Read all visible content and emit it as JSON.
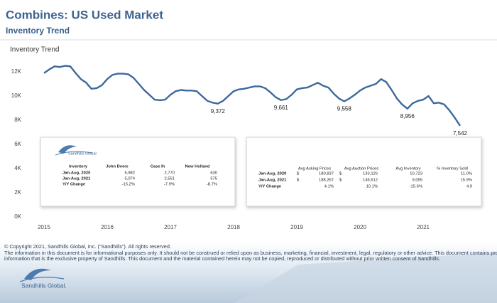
{
  "header": {
    "title": "Combines:  US Used Market",
    "subtitle": "Inventory Trend"
  },
  "chart_data": {
    "type": "line",
    "title": "Inventory Trend",
    "categories": [
      "2015",
      null,
      null,
      null,
      null,
      null,
      null,
      null,
      null,
      null,
      null,
      null,
      "2016",
      null,
      null,
      null,
      null,
      null,
      null,
      null,
      null,
      null,
      null,
      null,
      "2017",
      null,
      null,
      null,
      null,
      null,
      null,
      null,
      null,
      null,
      null,
      null,
      "2018",
      null,
      null,
      null,
      null,
      null,
      null,
      null,
      null,
      null,
      null,
      null,
      "2019",
      null,
      null,
      null,
      null,
      null,
      null,
      null,
      null,
      null,
      null,
      null,
      "2020",
      null,
      null,
      null,
      null,
      null,
      null,
      null,
      null,
      null,
      null,
      null,
      "2021",
      null,
      null,
      null,
      null,
      null,
      null,
      null
    ],
    "values": [
      11900,
      12200,
      12450,
      12400,
      12500,
      12450,
      11900,
      11400,
      11100,
      10600,
      10650,
      10900,
      11400,
      11750,
      11850,
      11850,
      11800,
      11500,
      11000,
      10500,
      10100,
      9700,
      9650,
      9700,
      10100,
      10400,
      10500,
      10450,
      10450,
      10400,
      10000,
      9600,
      9450,
      9372,
      9600,
      10000,
      10400,
      10550,
      10600,
      10700,
      10800,
      10800,
      10650,
      10300,
      9900,
      9661,
      9750,
      10100,
      10550,
      10650,
      10700,
      10900,
      11100,
      10850,
      10700,
      10200,
      9800,
      9558,
      9800,
      10100,
      10450,
      10700,
      10850,
      11000,
      11400,
      11150,
      10500,
      9800,
      9300,
      8956,
      9400,
      9600,
      9700,
      10000,
      9400,
      9450,
      9300,
      8800,
      8200,
      7542
    ],
    "value_labels": [
      null,
      null,
      null,
      null,
      null,
      null,
      null,
      null,
      null,
      null,
      null,
      null,
      null,
      null,
      null,
      null,
      null,
      null,
      null,
      null,
      null,
      null,
      null,
      null,
      null,
      null,
      null,
      null,
      null,
      null,
      null,
      null,
      null,
      "9,372",
      null,
      null,
      null,
      null,
      null,
      null,
      null,
      null,
      null,
      null,
      null,
      "9,661",
      null,
      null,
      null,
      null,
      null,
      null,
      null,
      null,
      null,
      null,
      null,
      "9,558",
      null,
      null,
      null,
      null,
      null,
      null,
      null,
      null,
      null,
      null,
      null,
      "8,956",
      null,
      null,
      null,
      null,
      null,
      null,
      null,
      null,
      null,
      "7,542"
    ],
    "color": "#3d6a9a",
    "ylim": [
      0,
      12800
    ],
    "yticks": [
      {
        "value": 0,
        "label": "0K"
      },
      {
        "value": 2000,
        "label": "2K"
      },
      {
        "value": 4000,
        "label": "4K"
      },
      {
        "value": 6000,
        "label": "6K"
      },
      {
        "value": 8000,
        "label": "8K"
      },
      {
        "value": 10000,
        "label": "10K"
      },
      {
        "value": 12000,
        "label": "12K"
      }
    ],
    "grid": false
  },
  "tables": [
    {
      "logo": "Sandhills Global",
      "columns": [
        "Inventory",
        "John Deere",
        "Case Ih",
        "New Holland"
      ],
      "rows": [
        [
          "Jan-Aug, 2020",
          "5,982",
          "2,770",
          "630"
        ],
        [
          "Jan-Aug, 2021",
          "5,074",
          "2,551",
          "575"
        ],
        [
          "Y/Y Change",
          "-15.2%",
          "-7.9%",
          "-8.7%"
        ]
      ]
    },
    {
      "columns": [
        "Avg Asking Prices",
        "Avg Auction Prices",
        "Avg Inventory",
        "% Inventory Sold"
      ],
      "rows": [
        {
          "label": "Jan-Aug, 2020",
          "cells": [
            {
              "currency": "$",
              "amount": "180,837"
            },
            {
              "currency": "$",
              "amount": "133,126"
            },
            "10,723",
            "11.0%"
          ]
        },
        {
          "label": "Jan-Aug, 2021",
          "cells": [
            {
              "currency": "$",
              "amount": "188,267"
            },
            {
              "currency": "$",
              "amount": "146,612"
            },
            "9,055",
            "15.9%"
          ]
        },
        {
          "label": "Y/Y Change",
          "cells": [
            "4.1%",
            "10.1%",
            "-15.6%",
            "4.9"
          ]
        }
      ]
    }
  ],
  "footer": {
    "copyright": "© Copyright 2021, Sandhills Global, Inc. (“Sandhills”). All rights reserved.",
    "disclaimer": [
      "The information in this document is for informational purposes only.  It should not be construed or relied upon as business, marketing, financial, investment, legal, regulatory or other advice. This document contains proprietary",
      "information that is the exclusive property of Sandhills. This document and the material contained herein may not be copied, reproduced or distributed without prior written consent of Sandhills."
    ],
    "logo": "Sandhills Global."
  }
}
